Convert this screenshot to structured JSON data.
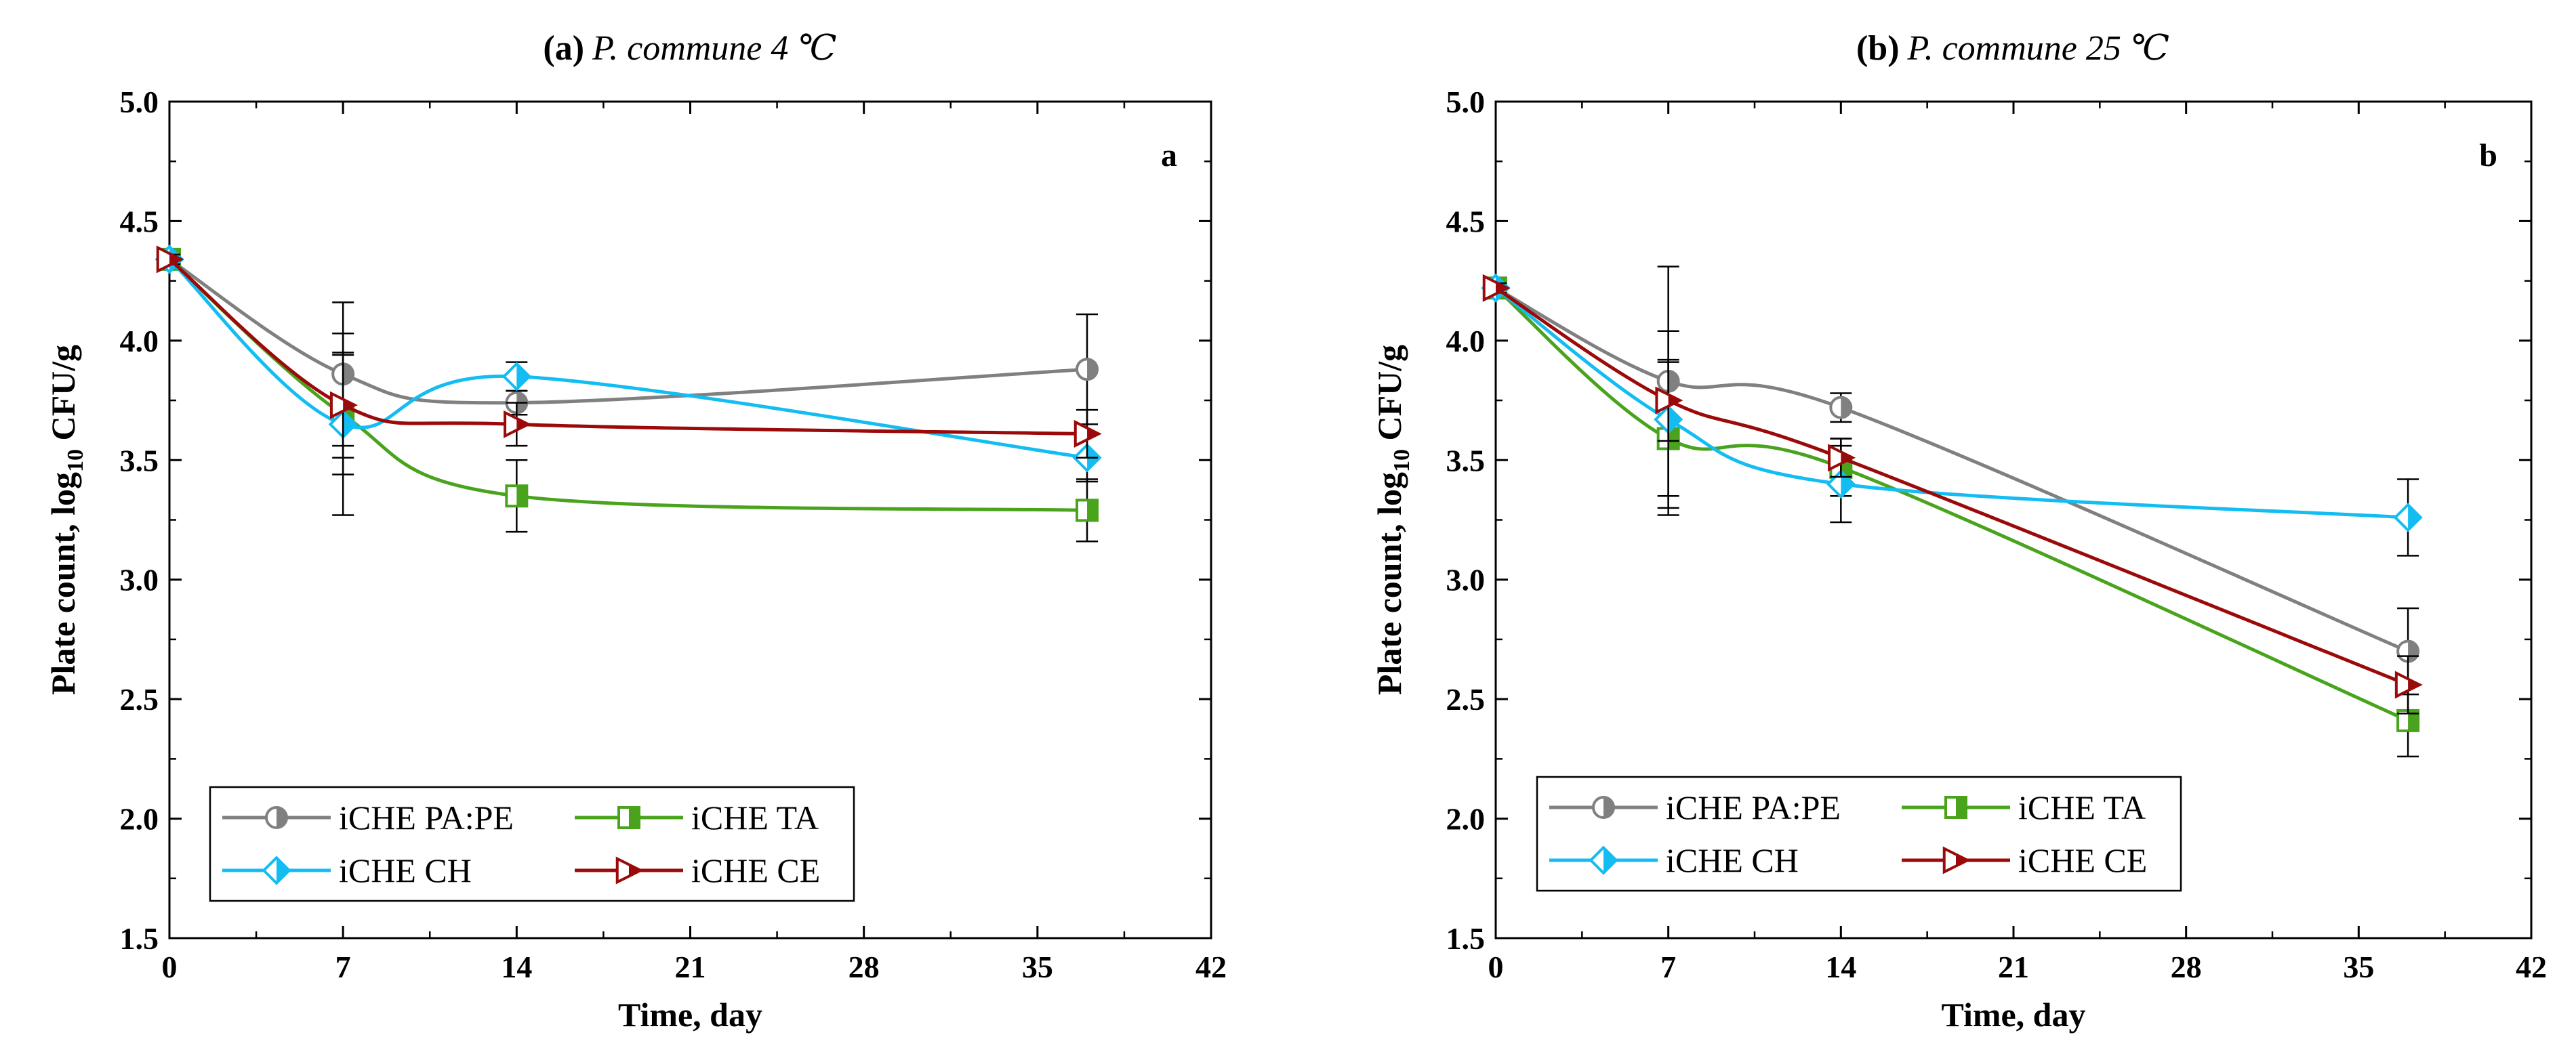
{
  "chart_data": [
    {
      "type": "line",
      "panel_tag": "(a)",
      "title": "P. commune 4 ℃",
      "panel_letter": "a",
      "xlabel": "Time, day",
      "ylabel_main": "Plate count, log",
      "ylabel_sub": "10",
      "ylabel_tail": " CFU/g",
      "xlim": [
        0,
        42
      ],
      "ylim": [
        1.5,
        5.0
      ],
      "xticks": [
        0,
        7,
        14,
        21,
        28,
        35,
        42
      ],
      "yticks": [
        1.5,
        2.0,
        2.5,
        3.0,
        3.5,
        4.0,
        4.5,
        5.0
      ],
      "xtick_labels": [
        "0",
        "7",
        "14",
        "21",
        "28",
        "35",
        "42"
      ],
      "ytick_labels": [
        "1.5",
        "2.0",
        "2.5",
        "3.0",
        "3.5",
        "4.0",
        "4.5",
        "5.0"
      ],
      "legend_position": "bottom-left",
      "x": [
        0,
        7,
        14,
        37
      ],
      "series": [
        {
          "name": "iCHE PA:PE",
          "values": [
            4.34,
            3.86,
            3.74,
            3.88
          ],
          "errors": [
            0.02,
            0.3,
            0.05,
            0.23
          ],
          "color": "#808080",
          "marker": "circle-half"
        },
        {
          "name": "iCHE TA",
          "values": [
            4.34,
            3.69,
            3.35,
            3.29
          ],
          "errors": [
            0.02,
            0.25,
            0.15,
            0.13
          ],
          "color": "#4aa31d",
          "marker": "square-half"
        },
        {
          "name": "iCHE CH",
          "values": [
            4.34,
            3.65,
            3.85,
            3.51
          ],
          "errors": [
            0.02,
            0.38,
            0.06,
            0.1
          ],
          "color": "#13bdf2",
          "marker": "diamond-half"
        },
        {
          "name": "iCHE CE",
          "values": [
            4.34,
            3.73,
            3.65,
            3.61
          ],
          "errors": [
            0.02,
            0.22,
            0.09,
            0.1
          ],
          "color": "#9b0a0a",
          "marker": "triangle-half"
        }
      ]
    },
    {
      "type": "line",
      "panel_tag": "(b)",
      "title": "P. commune 25 ℃",
      "panel_letter": "b",
      "xlabel": "Time, day",
      "ylabel_main": "Plate count, log",
      "ylabel_sub": "10",
      "ylabel_tail": " CFU/g",
      "xlim": [
        0,
        42
      ],
      "ylim": [
        1.5,
        5.0
      ],
      "xticks": [
        0,
        7,
        14,
        21,
        28,
        35,
        42
      ],
      "yticks": [
        1.5,
        2.0,
        2.5,
        3.0,
        3.5,
        4.0,
        4.5,
        5.0
      ],
      "xtick_labels": [
        "0",
        "7",
        "14",
        "21",
        "28",
        "35",
        "42"
      ],
      "ytick_labels": [
        "1.5",
        "2.0",
        "2.5",
        "3.0",
        "3.5",
        "4.0",
        "4.5",
        "5.0"
      ],
      "legend_position": "bottom-left",
      "x": [
        0,
        7,
        14,
        37
      ],
      "series": [
        {
          "name": "iCHE PA:PE",
          "values": [
            4.22,
            3.83,
            3.72,
            2.7
          ],
          "errors": [
            0.02,
            0.48,
            0.06,
            0.18
          ],
          "color": "#808080",
          "marker": "circle-half"
        },
        {
          "name": "iCHE TA",
          "values": [
            4.22,
            3.59,
            3.47,
            2.41
          ],
          "errors": [
            0.02,
            0.32,
            0.12,
            0.15
          ],
          "color": "#4aa31d",
          "marker": "square-half"
        },
        {
          "name": "iCHE CH",
          "values": [
            4.22,
            3.67,
            3.4,
            3.26
          ],
          "errors": [
            0.02,
            0.37,
            0.16,
            0.16
          ],
          "color": "#13bdf2",
          "marker": "diamond-half"
        },
        {
          "name": "iCHE CE",
          "values": [
            4.22,
            3.75,
            3.51,
            2.56
          ],
          "errors": [
            0.02,
            0.17,
            0.08,
            0.12
          ],
          "color": "#9b0a0a",
          "marker": "triangle-half"
        }
      ]
    }
  ]
}
